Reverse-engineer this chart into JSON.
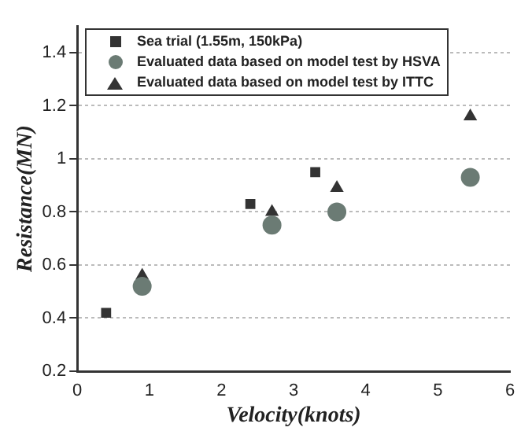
{
  "chart_data": {
    "type": "scatter",
    "xlabel": "Velocity(knots)",
    "ylabel": "Resistance(MN)",
    "xlim": [
      0,
      6
    ],
    "xticks": [
      0,
      1,
      2,
      3,
      4,
      5,
      6
    ],
    "ylim": [
      0.2,
      1.5
    ],
    "yticks": [
      0.2,
      0.4,
      0.6,
      0.8,
      1,
      1.2,
      1.4
    ],
    "grid": "y",
    "legend": "top left",
    "series": [
      {
        "name": "Sea trial (1.55m, 150kPa)",
        "color": "#333333",
        "marker": "square",
        "x": [
          0.4,
          2.4,
          3.3
        ],
        "values": [
          0.42,
          0.83,
          0.95
        ]
      },
      {
        "name": "Evaluated data based on model test by HSVA",
        "color": "#6b7b74",
        "marker": "circle",
        "x": [
          0.9,
          2.7,
          3.6,
          5.45
        ],
        "values": [
          0.52,
          0.75,
          0.8,
          0.93
        ]
      },
      {
        "name": "Evaluated data based on model test by ITTC",
        "color": "#333333",
        "marker": "triangle",
        "x": [
          0.9,
          2.7,
          3.6,
          5.45
        ],
        "values": [
          0.56,
          0.8,
          0.89,
          1.16
        ]
      }
    ]
  }
}
